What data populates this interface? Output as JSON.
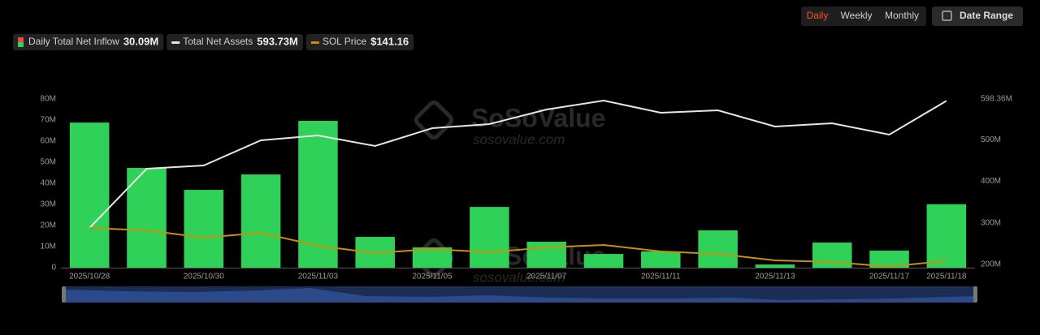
{
  "controls": {
    "period_options": [
      "Daily",
      "Weekly",
      "Monthly"
    ],
    "active": "Daily",
    "date_range": "Date Range"
  },
  "watermark": {
    "brand": "SoSoValue",
    "site": "sosovalue.com"
  },
  "chart_data": {
    "type": "bar-line",
    "categories": [
      "2025/10/28",
      null,
      "2025/10/30",
      null,
      "2025/11/03",
      null,
      "2025/11/05",
      null,
      "2025/11/07",
      null,
      "2025/11/11",
      null,
      "2025/11/13",
      null,
      "2025/11/17",
      "2025/11/18"
    ],
    "ylim": [
      0,
      80
    ],
    "yticks": [
      0,
      {
        "value": 10,
        "label": "10M"
      },
      {
        "value": 20,
        "label": "20M"
      },
      {
        "value": 30,
        "label": "30M"
      },
      {
        "value": 40,
        "label": "40M"
      },
      {
        "value": 50,
        "label": "50M"
      },
      {
        "value": 60,
        "label": "60M"
      },
      {
        "value": 70,
        "label": "70M"
      },
      {
        "value": 80,
        "label": "80M"
      }
    ],
    "y2lim": [
      192.2,
      598.36
    ],
    "y2ticks": [
      {
        "value": 200,
        "label": "200M"
      },
      {
        "value": 300,
        "label": "300M"
      },
      {
        "value": 400,
        "label": "400M"
      },
      {
        "value": 500,
        "label": "500M"
      },
      {
        "value": 598.36,
        "label": "598.36M"
      }
    ],
    "y3lim": [
      130,
      400
    ],
    "series": [
      {
        "name": "Daily Total Net Inflow",
        "legend_value": "30.09M",
        "kind": "bar",
        "color": "#30d158",
        "values": [
          68.8,
          47.3,
          36.9,
          44.2,
          69.6,
          14.6,
          9.6,
          28.8,
          12.3,
          6.5,
          7.7,
          17.7,
          1.5,
          11.9,
          8.1,
          30.09
        ]
      },
      {
        "name": "Total Net Assets",
        "legend_value": "593.73M",
        "kind": "line",
        "axis": "y2",
        "color": "#e6e6e6",
        "values": [
          287.9,
          430.5,
          438.3,
          498.8,
          510.5,
          485.2,
          528.1,
          537.9,
          573.0,
          594.5,
          565.2,
          571.1,
          532.0,
          539.8,
          512.5,
          593.73
        ]
      },
      {
        "name": "SOL Price",
        "legend_value": "$141.16",
        "kind": "line",
        "axis": "y3",
        "color": "#c8900a",
        "values": [
          193.6,
          189.7,
          178.0,
          185.8,
          165.0,
          153.4,
          159.9,
          154.7,
          162.5,
          166.3,
          156.0,
          152.1,
          141.7,
          139.1,
          131.5,
          141.16
        ]
      }
    ]
  }
}
